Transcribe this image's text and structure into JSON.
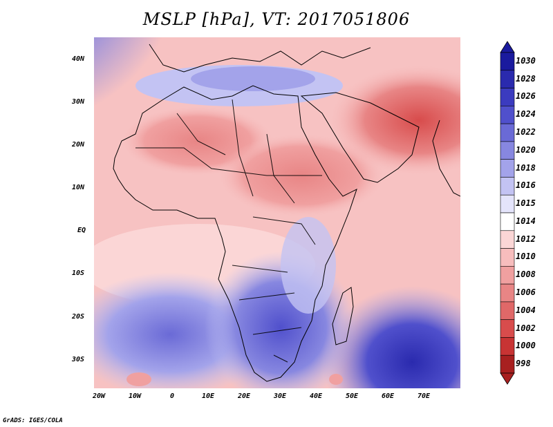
{
  "title": "MSLP [hPa], VT: 2017051806",
  "map": {
    "lat_labels": [
      "40N",
      "30N",
      "20N",
      "10N",
      "EQ",
      "10S",
      "20S",
      "30S"
    ],
    "lon_labels": [
      "20W",
      "10W",
      "0",
      "10E",
      "20E",
      "30E",
      "40E",
      "50E",
      "60E",
      "70E"
    ]
  },
  "colorbar": {
    "levels": [
      "1030",
      "1028",
      "1026",
      "1024",
      "1022",
      "1020",
      "1018",
      "1016",
      "1015",
      "1014",
      "1012",
      "1010",
      "1008",
      "1006",
      "1004",
      "1002",
      "1000",
      "998"
    ],
    "colors": [
      "#1a1a9e",
      "#2a2aae",
      "#3b3bbf",
      "#5050cc",
      "#6a6ad6",
      "#8787e0",
      "#a3a3ea",
      "#c3c3f3",
      "#e4e4fb",
      "#ffffff",
      "#fbd6d6",
      "#f7bdbd",
      "#f0a0a0",
      "#e88585",
      "#e06868",
      "#d84c4c",
      "#c83434",
      "#a82020"
    ]
  },
  "footer": "GrADS: IGES/COLA"
}
